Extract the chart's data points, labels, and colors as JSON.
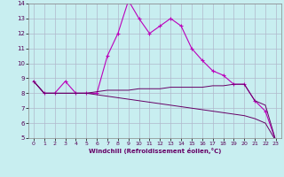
{
  "xlabel": "Windchill (Refroidissement éolien,°C)",
  "background_color": "#c8eef0",
  "grid_color": "#b0b8cc",
  "line_color": "#bb00bb",
  "line2_color": "#660066",
  "x_values": [
    0,
    1,
    2,
    3,
    4,
    5,
    6,
    7,
    8,
    9,
    10,
    11,
    12,
    13,
    14,
    15,
    16,
    17,
    18,
    19,
    20,
    21,
    22,
    23
  ],
  "line1": [
    8.8,
    8.0,
    8.0,
    8.8,
    8.0,
    8.0,
    8.0,
    10.5,
    12.0,
    14.2,
    13.0,
    12.0,
    12.5,
    13.0,
    12.5,
    11.0,
    10.2,
    9.5,
    9.2,
    8.6,
    8.6,
    7.5,
    6.8,
    4.8
  ],
  "line2": [
    8.8,
    8.0,
    8.0,
    8.0,
    8.0,
    8.0,
    8.1,
    8.2,
    8.2,
    8.2,
    8.3,
    8.3,
    8.3,
    8.4,
    8.4,
    8.4,
    8.4,
    8.5,
    8.5,
    8.6,
    8.6,
    7.5,
    7.2,
    4.8
  ],
  "line3": [
    8.8,
    8.0,
    8.0,
    8.0,
    8.0,
    8.0,
    7.9,
    7.8,
    7.7,
    7.6,
    7.5,
    7.4,
    7.3,
    7.2,
    7.1,
    7.0,
    6.9,
    6.8,
    6.7,
    6.6,
    6.5,
    6.3,
    6.0,
    4.8
  ],
  "ylim": [
    5,
    14
  ],
  "xlim": [
    -0.5,
    23.5
  ],
  "yticks": [
    5,
    6,
    7,
    8,
    9,
    10,
    11,
    12,
    13,
    14
  ],
  "xticks": [
    0,
    1,
    2,
    3,
    4,
    5,
    6,
    7,
    8,
    9,
    10,
    11,
    12,
    13,
    14,
    15,
    16,
    17,
    18,
    19,
    20,
    21,
    22,
    23
  ]
}
